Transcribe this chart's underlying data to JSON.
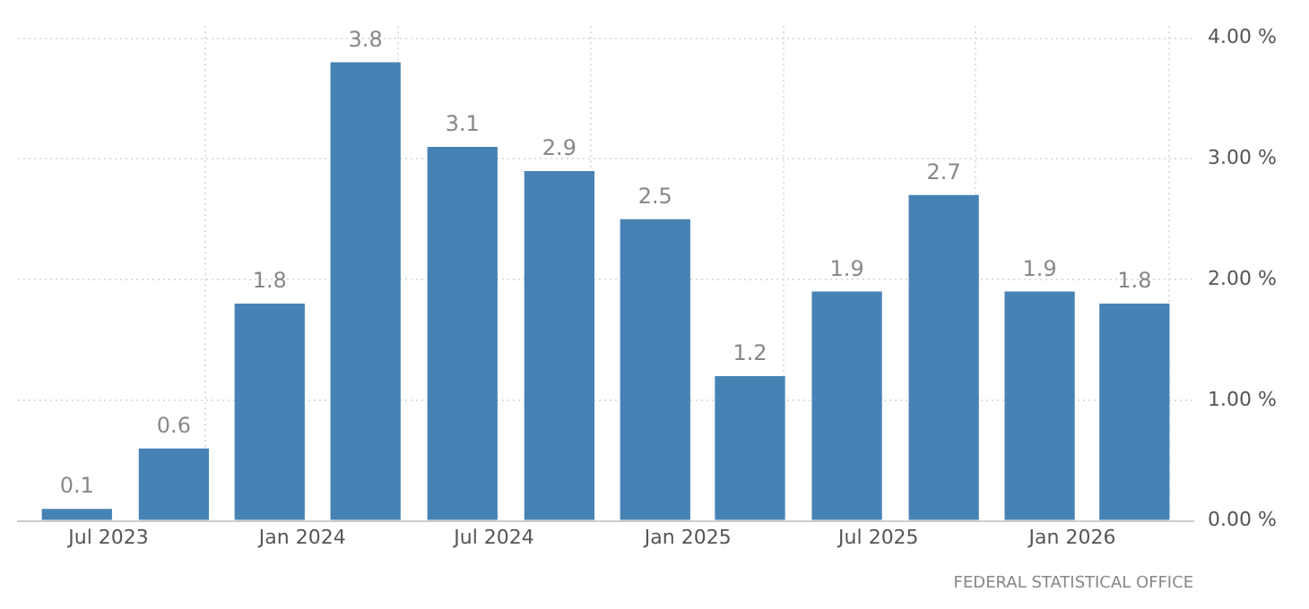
{
  "chart_data": {
    "type": "bar",
    "x": [
      "2023-06",
      "2023-09",
      "2023-12",
      "2024-03",
      "2024-06",
      "2024-09",
      "2024-12",
      "2025-03",
      "2025-06",
      "2025-09",
      "2025-12",
      "2026-03"
    ],
    "values": [
      0.1,
      0.6,
      1.8,
      3.8,
      3.1,
      2.9,
      2.5,
      1.2,
      1.9,
      2.7,
      1.9,
      1.8
    ],
    "color": "#4682b4",
    "data_labels": true,
    "xlim": [
      "2023-04-06",
      "2026-04-26"
    ],
    "xticks": [
      {
        "value": "2023-07",
        "label": "Jul 2023"
      },
      {
        "value": "2024-01",
        "label": "Jan 2024"
      },
      {
        "value": "2024-07",
        "label": "Jul 2024"
      },
      {
        "value": "2025-01",
        "label": "Jan 2025"
      },
      {
        "value": "2025-07",
        "label": "Jul 2025"
      },
      {
        "value": "2026-01",
        "label": "Jan 2026"
      }
    ],
    "ylim": [
      0,
      4.1
    ],
    "yticks": [
      {
        "value": 0,
        "label": "0.00 %"
      },
      {
        "value": 1,
        "label": "1.00 %"
      },
      {
        "value": 2,
        "label": "2.00 %"
      },
      {
        "value": 3,
        "label": "3.00 %"
      },
      {
        "value": 4,
        "label": "4.00 %"
      }
    ],
    "grid": true,
    "legend": false,
    "annotations": [
      "FEDERAL STATISTICAL OFFICE"
    ]
  }
}
